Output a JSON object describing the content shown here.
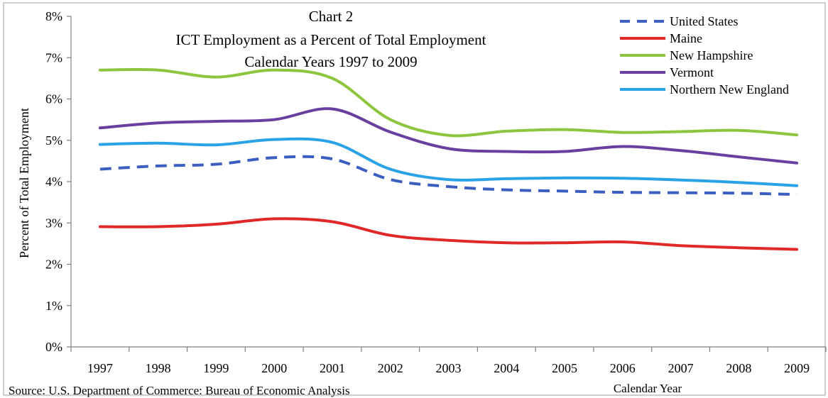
{
  "chart_data": {
    "type": "line",
    "title": "Chart 2",
    "subtitle_lines": [
      "ICT Employment as a Percent of Total Employment",
      "Calendar Years 1997 to 2009"
    ],
    "xlabel": "Calendar Year",
    "ylabel": "Percent of Total Employment",
    "source": "Source: U.S. Department of Commerce: Bureau of Economic Analysis",
    "x": [
      "1997",
      "1998",
      "1999",
      "2000",
      "2001",
      "2002",
      "2003",
      "2004",
      "2005",
      "2006",
      "2007",
      "2008",
      "2009"
    ],
    "ylim": [
      0,
      8
    ],
    "yticks": [
      0,
      1,
      2,
      3,
      4,
      5,
      6,
      7,
      8
    ],
    "ytick_labels": [
      "0%",
      "1%",
      "2%",
      "3%",
      "4%",
      "5%",
      "6%",
      "7%",
      "8%"
    ],
    "grid": false,
    "legend_position": "top-right",
    "series": [
      {
        "name": "United States",
        "color": "#3a5fc0",
        "dashed": true,
        "values": [
          4.3,
          4.38,
          4.42,
          4.58,
          4.55,
          4.05,
          3.88,
          3.8,
          3.77,
          3.74,
          3.73,
          3.72,
          3.69
        ]
      },
      {
        "name": "Maine",
        "color": "#e02828",
        "dashed": false,
        "values": [
          2.91,
          2.91,
          2.97,
          3.1,
          3.03,
          2.7,
          2.58,
          2.52,
          2.52,
          2.54,
          2.45,
          2.4,
          2.36
        ]
      },
      {
        "name": "New Hampshire",
        "color": "#8cc63f",
        "dashed": false,
        "values": [
          6.7,
          6.7,
          6.53,
          6.7,
          6.5,
          5.5,
          5.12,
          5.22,
          5.26,
          5.19,
          5.21,
          5.24,
          5.13
        ]
      },
      {
        "name": "Vermont",
        "color": "#6a3fa0",
        "dashed": false,
        "values": [
          5.3,
          5.42,
          5.46,
          5.5,
          5.76,
          5.2,
          4.8,
          4.73,
          4.73,
          4.85,
          4.75,
          4.6,
          4.45
        ]
      },
      {
        "name": "Northern New England",
        "color": "#2aa3e6",
        "dashed": false,
        "values": [
          4.9,
          4.93,
          4.89,
          5.02,
          4.95,
          4.3,
          4.05,
          4.07,
          4.09,
          4.08,
          4.04,
          3.98,
          3.9
        ]
      }
    ]
  }
}
